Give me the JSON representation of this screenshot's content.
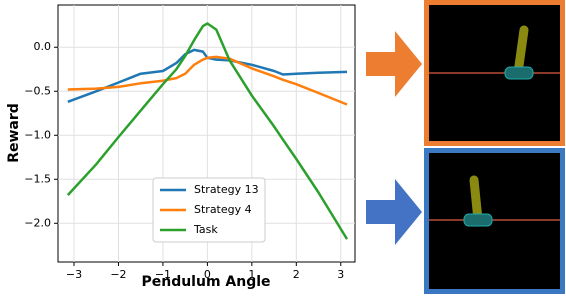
{
  "chart_data": {
    "type": "line",
    "xlabel": "Pendulum Angle",
    "ylabel": "Reward",
    "x": [
      -3.14,
      -2.5,
      -2,
      -1.5,
      -1,
      -0.7,
      -0.5,
      -0.3,
      -0.1,
      0,
      0.2,
      0.5,
      1,
      1.5,
      1.7,
      2,
      2.5,
      3.14
    ],
    "series": [
      {
        "name": "Strategy 13",
        "color": "#1f77b4",
        "values": [
          -0.62,
          -0.5,
          -0.4,
          -0.3,
          -0.27,
          -0.18,
          -0.08,
          -0.03,
          -0.05,
          -0.12,
          -0.14,
          -0.15,
          -0.2,
          -0.27,
          -0.31,
          -0.3,
          -0.29,
          -0.28
        ]
      },
      {
        "name": "Strategy 4",
        "color": "#ff7f0e",
        "values": [
          -0.48,
          -0.47,
          -0.45,
          -0.41,
          -0.38,
          -0.35,
          -0.3,
          -0.2,
          -0.14,
          -0.12,
          -0.11,
          -0.13,
          -0.24,
          -0.33,
          -0.37,
          -0.42,
          -0.52,
          -0.65
        ]
      },
      {
        "name": "Task",
        "color": "#2ca02c",
        "values": [
          -1.68,
          -1.33,
          -1.02,
          -0.72,
          -0.42,
          -0.25,
          -0.1,
          0.08,
          0.24,
          0.27,
          0.2,
          -0.15,
          -0.55,
          -0.9,
          -1.05,
          -1.27,
          -1.65,
          -2.18
        ]
      }
    ],
    "xlim": [
      -3.36,
      3.32
    ],
    "ylim": [
      -2.44,
      0.48
    ],
    "xticks": [
      {
        "value": -3,
        "label": "−3"
      },
      {
        "value": -2,
        "label": "−2"
      },
      {
        "value": -1,
        "label": "−1"
      },
      0,
      1,
      2,
      3
    ],
    "yticks": [
      {
        "value": 0,
        "label": "0.0"
      },
      {
        "value": -0.5,
        "label": "−0.5"
      },
      {
        "value": -1,
        "label": "−1.0"
      },
      {
        "value": -1.5,
        "label": "−1.5"
      },
      {
        "value": -2,
        "label": "−2.0"
      }
    ],
    "grid": true,
    "legend": "lower center"
  }
}
